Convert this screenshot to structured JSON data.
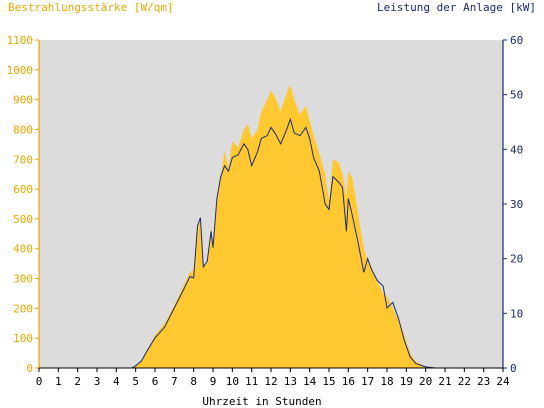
{
  "chart_data": {
    "type": "area",
    "left_axis_title": "Bestrahlungsstärke [W/qm]",
    "right_axis_title": "Leistung der Anlage [kW]",
    "xlabel": "Uhrzeit in Stunden",
    "xlim": [
      0,
      24
    ],
    "ylim_left": [
      0,
      1100
    ],
    "ylim_right": [
      0,
      60
    ],
    "x_ticks": [
      "0",
      "1",
      "2",
      "3",
      "4",
      "5",
      "6",
      "7",
      "8",
      "9",
      "10",
      "11",
      "12",
      "13",
      "14",
      "15",
      "16",
      "17",
      "18",
      "19",
      "20",
      "21",
      "22",
      "23",
      "24"
    ],
    "y_ticks_left": [
      "0",
      "100",
      "200",
      "300",
      "400",
      "500",
      "600",
      "700",
      "800",
      "900",
      "1000",
      "1100"
    ],
    "y_ticks_right": [
      "0",
      "10",
      "20",
      "30",
      "40",
      "50",
      "60"
    ],
    "colors": {
      "irradiance": "#ffc830",
      "power": "#1a2c6e",
      "plot_bg": "#dcdcdc",
      "left_axis": "#e8a800",
      "right_axis": "#1a2c6e"
    },
    "series": [
      {
        "name": "Bestrahlungsstärke [W/qm]",
        "axis": "left",
        "x": [
          0,
          4.8,
          5.0,
          5.3,
          5.6,
          6.0,
          6.5,
          7.0,
          7.5,
          7.8,
          8.0,
          8.2,
          8.35,
          8.5,
          8.7,
          8.9,
          9.0,
          9.2,
          9.4,
          9.6,
          9.8,
          10.0,
          10.3,
          10.6,
          10.8,
          11.0,
          11.3,
          11.5,
          11.8,
          12.0,
          12.2,
          12.5,
          12.8,
          13.0,
          13.2,
          13.5,
          13.8,
          14.0,
          14.2,
          14.5,
          14.8,
          15.0,
          15.2,
          15.5,
          15.7,
          15.9,
          16.0,
          16.2,
          16.5,
          16.8,
          17.0,
          17.2,
          17.5,
          17.8,
          18.0,
          18.3,
          18.6,
          18.9,
          19.2,
          19.5,
          20.0,
          20.5,
          24
        ],
        "values": [
          0,
          0,
          8,
          25,
          60,
          110,
          150,
          210,
          280,
          320,
          330,
          460,
          510,
          350,
          345,
          470,
          420,
          550,
          640,
          730,
          670,
          760,
          740,
          800,
          820,
          770,
          800,
          860,
          900,
          930,
          910,
          860,
          920,
          950,
          900,
          850,
          880,
          830,
          780,
          720,
          650,
          560,
          700,
          690,
          650,
          570,
          660,
          640,
          520,
          400,
          360,
          340,
          290,
          250,
          240,
          200,
          160,
          110,
          50,
          20,
          5,
          0,
          0
        ]
      },
      {
        "name": "Leistung der Anlage [kW]",
        "axis": "right",
        "x": [
          0,
          4.8,
          5.0,
          5.3,
          5.6,
          6.0,
          6.5,
          7.0,
          7.5,
          7.8,
          8.0,
          8.2,
          8.35,
          8.5,
          8.7,
          8.9,
          9.0,
          9.2,
          9.4,
          9.6,
          9.8,
          10.0,
          10.3,
          10.6,
          10.8,
          11.0,
          11.3,
          11.5,
          11.8,
          12.0,
          12.2,
          12.5,
          12.8,
          13.0,
          13.2,
          13.5,
          13.8,
          14.0,
          14.2,
          14.5,
          14.8,
          15.0,
          15.2,
          15.5,
          15.7,
          15.9,
          16.0,
          16.2,
          16.5,
          16.8,
          17.0,
          17.2,
          17.5,
          17.8,
          18.0,
          18.3,
          18.6,
          18.9,
          19.2,
          19.5,
          20.0,
          20.5,
          24
        ],
        "values": [
          0,
          0,
          0.4,
          1.3,
          3.2,
          5.5,
          7.5,
          11,
          14.5,
          16.7,
          16.5,
          26,
          27.5,
          18.5,
          19.5,
          25,
          22,
          31,
          35,
          37,
          36,
          38.5,
          39,
          41,
          40,
          37,
          39.5,
          42,
          42.5,
          44,
          43,
          41,
          43.5,
          45.5,
          43,
          42.5,
          44,
          42,
          38.5,
          36,
          30,
          29,
          35,
          34,
          33,
          25,
          31,
          28,
          23,
          17.5,
          20,
          18,
          16,
          15,
          11,
          12,
          9,
          5,
          2,
          0.8,
          0.2,
          0,
          0
        ]
      }
    ]
  }
}
